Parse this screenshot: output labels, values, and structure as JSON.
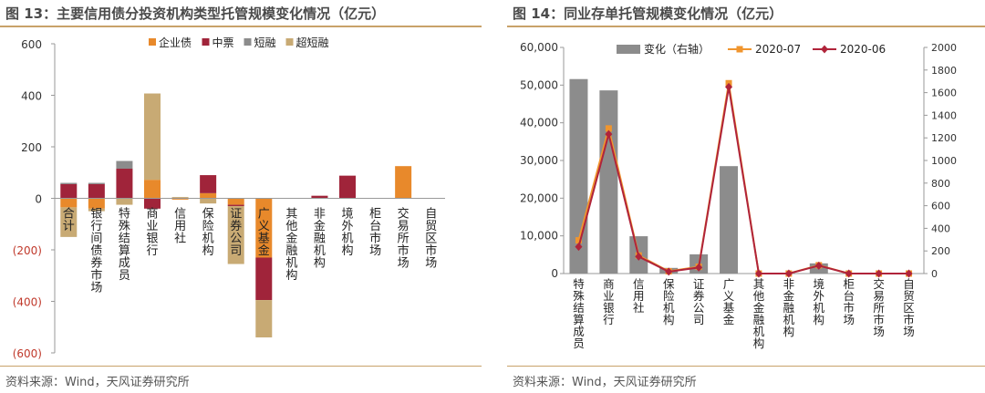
{
  "left": {
    "title": "图 13：主要信用债分投资机构类型托管规模变化情况（亿元）",
    "source": "资料来源：Wind，天风证券研究所"
  },
  "right": {
    "title": "图 14：同业存单托管规模变化情况（亿元）",
    "source": "资料来源：Wind，天风证券研究所"
  },
  "colors": {
    "title_rule": "#c8a26a",
    "company_bond": "#e8892b",
    "mtn": "#a0243a",
    "short_term": "#8c8c8c",
    "super_short": "#c8aa74",
    "bar_gray": "#8c8c8c",
    "line_2020_07": "#f0952e",
    "line_2020_06": "#b0243a",
    "negative_label": "#c0392b"
  },
  "chart_data": [
    {
      "type": "bar",
      "stacked": true,
      "categories": [
        "合计",
        "银行间债券市场",
        "特殊结算成员",
        "商业银行",
        "信用社",
        "保险机构",
        "证券公司",
        "广义基金",
        "其他金融机构",
        "非金融机构",
        "境外机构",
        "柜台市场",
        "交易所市场",
        "自贸区市场"
      ],
      "series": [
        {
          "name": "企业债",
          "values": [
            -35,
            -40,
            0,
            72,
            -5,
            20,
            -25,
            -230,
            0,
            0,
            0,
            0,
            125,
            0
          ]
        },
        {
          "name": "中票",
          "values": [
            55,
            55,
            115,
            -40,
            0,
            70,
            -5,
            -165,
            0,
            10,
            88,
            0,
            0,
            0
          ]
        },
        {
          "name": "短融",
          "values": [
            5,
            5,
            30,
            0,
            0,
            0,
            0,
            0,
            0,
            0,
            0,
            0,
            0,
            0
          ]
        },
        {
          "name": "超短融",
          "values": [
            -115,
            -10,
            -25,
            335,
            5,
            -20,
            -225,
            -145,
            0,
            0,
            0,
            0,
            0,
            0
          ]
        }
      ],
      "ylim": [
        -600,
        600
      ],
      "yticks": [
        "600",
        "400",
        "200",
        "0",
        "(200)",
        "(400)",
        "(600)"
      ],
      "ytick_values": [
        600,
        400,
        200,
        0,
        -200,
        -400,
        -600
      ],
      "legend": "top",
      "grid": false
    },
    {
      "type": "bar+line",
      "categories": [
        "特殊结算成员",
        "商业银行",
        "信用社",
        "保险机构",
        "证券公司",
        "广义基金",
        "其他金融机构",
        "非金融机构",
        "境外机构",
        "柜台市场",
        "交易所市场",
        "自贸区市场"
      ],
      "series": [
        {
          "name": "变化（右轴）",
          "kind": "bar",
          "axis": "right",
          "values": [
            1720,
            1620,
            330,
            50,
            170,
            950,
            0,
            0,
            90,
            0,
            0,
            0
          ]
        },
        {
          "name": "2020-07",
          "kind": "line",
          "axis": "left",
          "marker": "square",
          "values": [
            8800,
            38500,
            4800,
            600,
            1800,
            50500,
            0,
            0,
            2200,
            0,
            0,
            0
          ]
        },
        {
          "name": "2020-06",
          "kind": "line",
          "axis": "left",
          "marker": "diamond",
          "values": [
            7100,
            37000,
            4500,
            500,
            1600,
            49500,
            0,
            0,
            2100,
            0,
            0,
            0
          ]
        }
      ],
      "ylim_left": [
        0,
        60000
      ],
      "ylim_right": [
        0,
        2000
      ],
      "yticks_left": [
        "0",
        "10,000",
        "20,000",
        "30,000",
        "40,000",
        "50,000",
        "60,000"
      ],
      "ytick_values_left": [
        0,
        10000,
        20000,
        30000,
        40000,
        50000,
        60000
      ],
      "yticks_right": [
        "0",
        "200",
        "400",
        "600",
        "800",
        "1000",
        "1200",
        "1400",
        "1600",
        "1800",
        "2000"
      ],
      "ytick_values_right": [
        0,
        200,
        400,
        600,
        800,
        1000,
        1200,
        1400,
        1600,
        1800,
        2000
      ],
      "legend": "top",
      "grid": false
    }
  ]
}
